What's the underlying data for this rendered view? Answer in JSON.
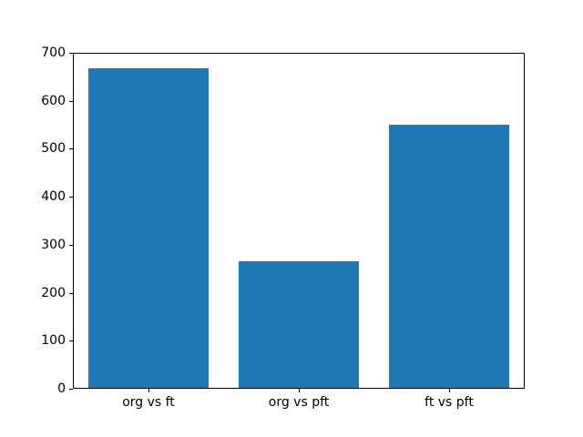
{
  "chart_data": {
    "type": "bar",
    "categories": [
      "org vs ft",
      "org vs pft",
      "ft vs pft"
    ],
    "values": [
      670,
      265,
      552
    ],
    "title": "",
    "xlabel": "",
    "ylabel": "",
    "ylim": [
      0,
      700
    ],
    "yticks": [
      0,
      100,
      200,
      300,
      400,
      500,
      600,
      700
    ],
    "bar_color": "#1f77b4",
    "bar_width_fraction": 0.8,
    "axis_color": "#000000",
    "background_color": "#ffffff",
    "grid": false,
    "legend": null
  }
}
